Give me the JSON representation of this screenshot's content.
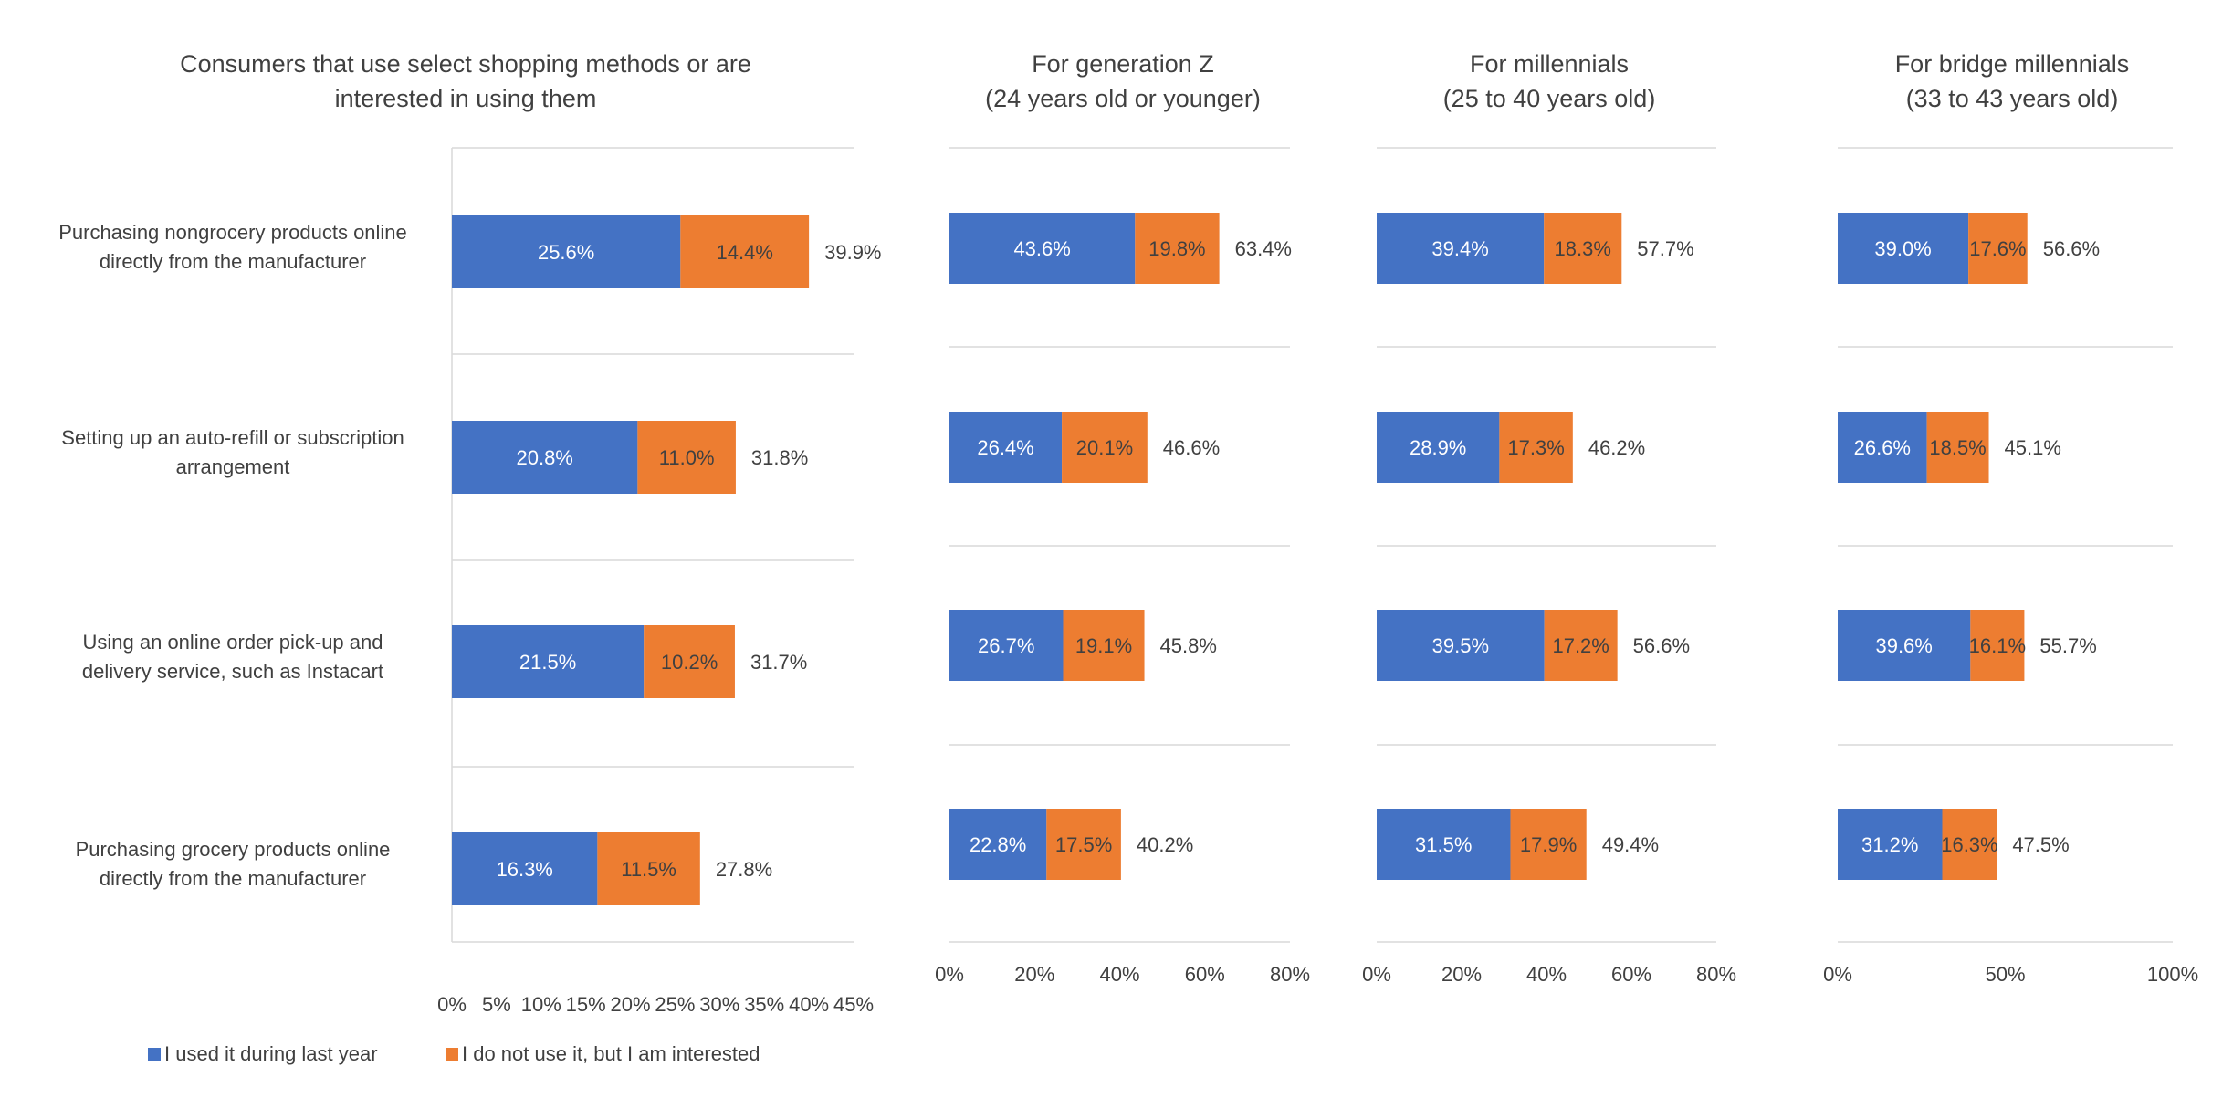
{
  "chart_data": [
    {
      "type": "bar",
      "stacked": true,
      "orientation": "horizontal",
      "title": "Consumers that use select shopping methods or are interested in using them",
      "title_lines": [
        "Consumers that use select shopping methods or are",
        "interested in using them"
      ],
      "categories": [
        [
          "Purchasing nongrocery products online",
          "directly from the manufacturer"
        ],
        [
          "Setting up an auto-refill or subscription",
          "arrangement"
        ],
        [
          "Using an online order pick-up and",
          "delivery service,  such as Instacart"
        ],
        [
          "Purchasing grocery products online",
          "directly from the manufacturer"
        ]
      ],
      "series": [
        {
          "name": "I used it during last year",
          "values": [
            25.6,
            20.8,
            21.5,
            16.3
          ],
          "labels": [
            "25.6%",
            "20.8%",
            "21.5%",
            "16.3%"
          ]
        },
        {
          "name": "I do not use it, but I am interested",
          "values": [
            14.4,
            11.0,
            10.2,
            11.5
          ],
          "labels": [
            "14.4%",
            "11.0%",
            "10.2%",
            "11.5%"
          ]
        }
      ],
      "totals": [
        "39.9%",
        "31.8%",
        "31.7%",
        "27.8%"
      ],
      "xlim": [
        0,
        45
      ],
      "xticks": [
        "0%",
        "5%",
        "10%",
        "15%",
        "20%",
        "25%",
        "30%",
        "35%",
        "40%",
        "45%"
      ]
    },
    {
      "type": "bar",
      "stacked": true,
      "orientation": "horizontal",
      "title": "For generation Z (24 years old or younger)",
      "title_lines": [
        "For generation Z",
        "(24 years old or younger)"
      ],
      "series": [
        {
          "name": "I used it during last year",
          "values": [
            43.6,
            26.4,
            26.7,
            22.8
          ],
          "labels": [
            "43.6%",
            "26.4%",
            "26.7%",
            "22.8%"
          ]
        },
        {
          "name": "I do not use it, but I am interested",
          "values": [
            19.8,
            20.1,
            19.1,
            17.5
          ],
          "labels": [
            "19.8%",
            "20.1%",
            "19.1%",
            "17.5%"
          ]
        }
      ],
      "totals": [
        "63.4%",
        "46.6%",
        "45.8%",
        "40.2%"
      ],
      "xlim": [
        0,
        80
      ],
      "xticks": [
        "0%",
        "20%",
        "40%",
        "60%",
        "80%"
      ]
    },
    {
      "type": "bar",
      "stacked": true,
      "orientation": "horizontal",
      "title": "For millennials (25 to 40 years old)",
      "title_lines": [
        "For millennials",
        "(25 to 40 years old)"
      ],
      "series": [
        {
          "name": "I used it during last year",
          "values": [
            39.4,
            28.9,
            39.5,
            31.5
          ],
          "labels": [
            "39.4%",
            "28.9%",
            "39.5%",
            "31.5%"
          ]
        },
        {
          "name": "I do not use it, but I am interested",
          "values": [
            18.3,
            17.3,
            17.2,
            17.9
          ],
          "labels": [
            "18.3%",
            "17.3%",
            "17.2%",
            "17.9%"
          ]
        }
      ],
      "totals": [
        "57.7%",
        "46.2%",
        "56.6%",
        "49.4%"
      ],
      "xlim": [
        0,
        80
      ],
      "xticks": [
        "0%",
        "20%",
        "40%",
        "60%",
        "80%"
      ]
    },
    {
      "type": "bar",
      "stacked": true,
      "orientation": "horizontal",
      "title": "For bridge millennials (33 to 43 years old)",
      "title_lines": [
        "For bridge millennials",
        "(33 to 43 years old)"
      ],
      "series": [
        {
          "name": "I used it during last year",
          "values": [
            39.0,
            26.6,
            39.6,
            31.2
          ],
          "labels": [
            "39.0%",
            "26.6%",
            "39.6%",
            "31.2%"
          ]
        },
        {
          "name": "I do not use it, but I am interested",
          "values": [
            17.6,
            18.5,
            16.1,
            16.3
          ],
          "labels": [
            "17.6%",
            "18.5%",
            "16.1%",
            "16.3%"
          ]
        }
      ],
      "totals": [
        "56.6%",
        "45.1%",
        "55.7%",
        "47.5%"
      ],
      "xlim": [
        0,
        100
      ],
      "xticks": [
        "0%",
        "50%",
        "100%"
      ]
    }
  ],
  "legend": [
    {
      "label": "I used it during last year",
      "color": "#4472c4"
    },
    {
      "label": "I do not use it, but I am interested",
      "color": "#ed7d31"
    }
  ],
  "colors": {
    "blue": "#4472c4",
    "orange": "#ed7d31",
    "grid": "#d9d9d9",
    "text": "#404040"
  }
}
